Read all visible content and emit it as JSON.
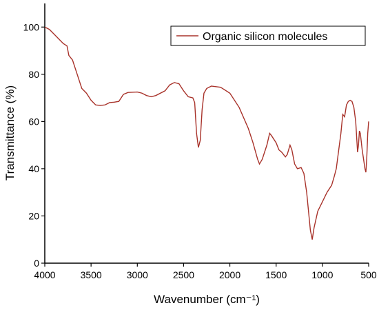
{
  "chart_data": {
    "type": "line",
    "x_label": "Wavenumber (cm⁻¹)",
    "y_label": "Transmittance (%)",
    "xlim": [
      4000,
      500
    ],
    "xticks": [
      4000,
      3500,
      3000,
      2500,
      2000,
      1500,
      1000,
      500
    ],
    "ylim": [
      0,
      110
    ],
    "yticks": [
      0,
      20,
      40,
      60,
      80,
      100
    ],
    "legend": "upper right",
    "x": [
      4000,
      3950,
      3900,
      3850,
      3800,
      3760,
      3740,
      3700,
      3650,
      3600,
      3550,
      3500,
      3450,
      3400,
      3350,
      3300,
      3250,
      3200,
      3150,
      3100,
      3000,
      2950,
      2900,
      2850,
      2800,
      2700,
      2650,
      2600,
      2550,
      2500,
      2450,
      2400,
      2380,
      2360,
      2340,
      2320,
      2300,
      2280,
      2250,
      2200,
      2100,
      2000,
      1900,
      1800,
      1750,
      1700,
      1680,
      1650,
      1600,
      1570,
      1550,
      1500,
      1470,
      1440,
      1400,
      1380,
      1350,
      1330,
      1300,
      1270,
      1230,
      1200,
      1170,
      1150,
      1130,
      1110,
      1090,
      1050,
      1000,
      950,
      900,
      870,
      850,
      800,
      780,
      760,
      740,
      720,
      700,
      680,
      660,
      640,
      620,
      610,
      600,
      590,
      570,
      540,
      530,
      520,
      510,
      500
    ],
    "series": [
      {
        "name": "Organic silicon molecules",
        "color": "#a8322a",
        "values": [
          100,
          99,
          97,
          95,
          93,
          92,
          88,
          86,
          80,
          74,
          72,
          69,
          67,
          66.8,
          67,
          68,
          68.2,
          68.5,
          71.5,
          72.3,
          72.5,
          72,
          71,
          70.5,
          71,
          73,
          75.5,
          76.5,
          76,
          73,
          70.5,
          70,
          68,
          55,
          49,
          52,
          65,
          72,
          74,
          75,
          74.5,
          72,
          66,
          57,
          51,
          44,
          42,
          44,
          50,
          55,
          54,
          51,
          48,
          47,
          45,
          46,
          50,
          48,
          42,
          40,
          40.5,
          38,
          30,
          22,
          14,
          10,
          15,
          22,
          26,
          30,
          33,
          37,
          40,
          55,
          63,
          62,
          67,
          68.5,
          69,
          68.5,
          66,
          60,
          47,
          50,
          56,
          55,
          48,
          40,
          38.5,
          45,
          55,
          60
        ]
      }
    ]
  }
}
